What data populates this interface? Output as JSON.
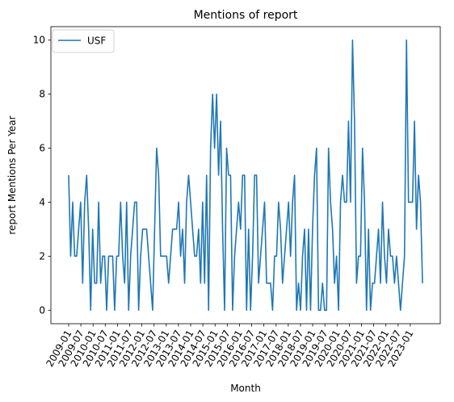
{
  "chart_data": {
    "type": "line",
    "title": "Mentions of report",
    "xlabel": "Month",
    "ylabel": "report Mentions Per Year",
    "ylim": [
      -0.5,
      10.5
    ],
    "yticks": [
      0,
      2,
      4,
      6,
      8,
      10
    ],
    "xticks": [
      "2009-01",
      "2009-07",
      "2010-01",
      "2010-07",
      "2011-01",
      "2011-07",
      "2012-01",
      "2012-07",
      "2013-01",
      "2013-07",
      "2014-01",
      "2014-07",
      "2015-01",
      "2015-07",
      "2016-01",
      "2016-07",
      "2017-01",
      "2017-07",
      "2018-01",
      "2018-07",
      "2019-01",
      "2019-07",
      "2020-01",
      "2020-07",
      "2021-01",
      "2021-07",
      "2022-01",
      "2022-07",
      "2023-01"
    ],
    "x_start": "2009-01",
    "x_end": "2023-07",
    "legend_position": "upper-left",
    "grid": false,
    "series": [
      {
        "name": "USF",
        "color": "#1f77b4",
        "values": [
          5,
          2,
          4,
          2,
          2,
          3,
          4,
          1,
          4,
          5,
          3,
          0,
          3,
          1,
          1,
          4,
          1,
          2,
          2,
          0,
          2,
          2,
          2,
          0,
          2,
          2,
          4,
          2,
          1,
          4,
          0,
          2,
          3,
          4,
          4,
          0,
          2,
          3,
          3,
          3,
          2,
          1,
          0,
          3,
          6,
          5,
          2,
          2,
          2,
          2,
          1,
          2,
          3,
          3,
          3,
          4,
          2,
          3,
          1,
          4,
          5,
          4,
          3,
          2,
          2,
          3,
          1,
          4,
          1,
          5,
          0,
          6,
          8,
          6,
          8,
          5,
          7,
          3,
          0,
          6,
          5,
          5,
          0,
          2,
          3,
          4,
          3,
          5,
          5,
          0,
          3,
          0,
          2,
          5,
          5,
          1,
          2,
          3,
          4,
          1,
          1,
          1,
          0,
          2,
          2,
          4,
          3,
          1,
          2,
          3,
          4,
          2,
          4,
          5,
          0,
          1,
          0,
          2,
          3,
          0,
          3,
          0,
          3,
          5,
          6,
          0,
          0,
          1,
          0,
          0,
          6,
          4,
          3,
          1,
          2,
          0,
          4,
          5,
          4,
          4,
          7,
          4,
          10,
          7,
          1,
          2,
          2,
          6,
          4,
          0,
          3,
          0,
          1,
          1,
          2,
          3,
          1,
          4,
          2,
          1,
          3,
          2,
          2,
          1,
          2,
          1,
          0,
          1,
          2,
          10,
          4,
          4,
          4,
          7,
          3,
          5,
          4,
          1
        ]
      }
    ]
  }
}
